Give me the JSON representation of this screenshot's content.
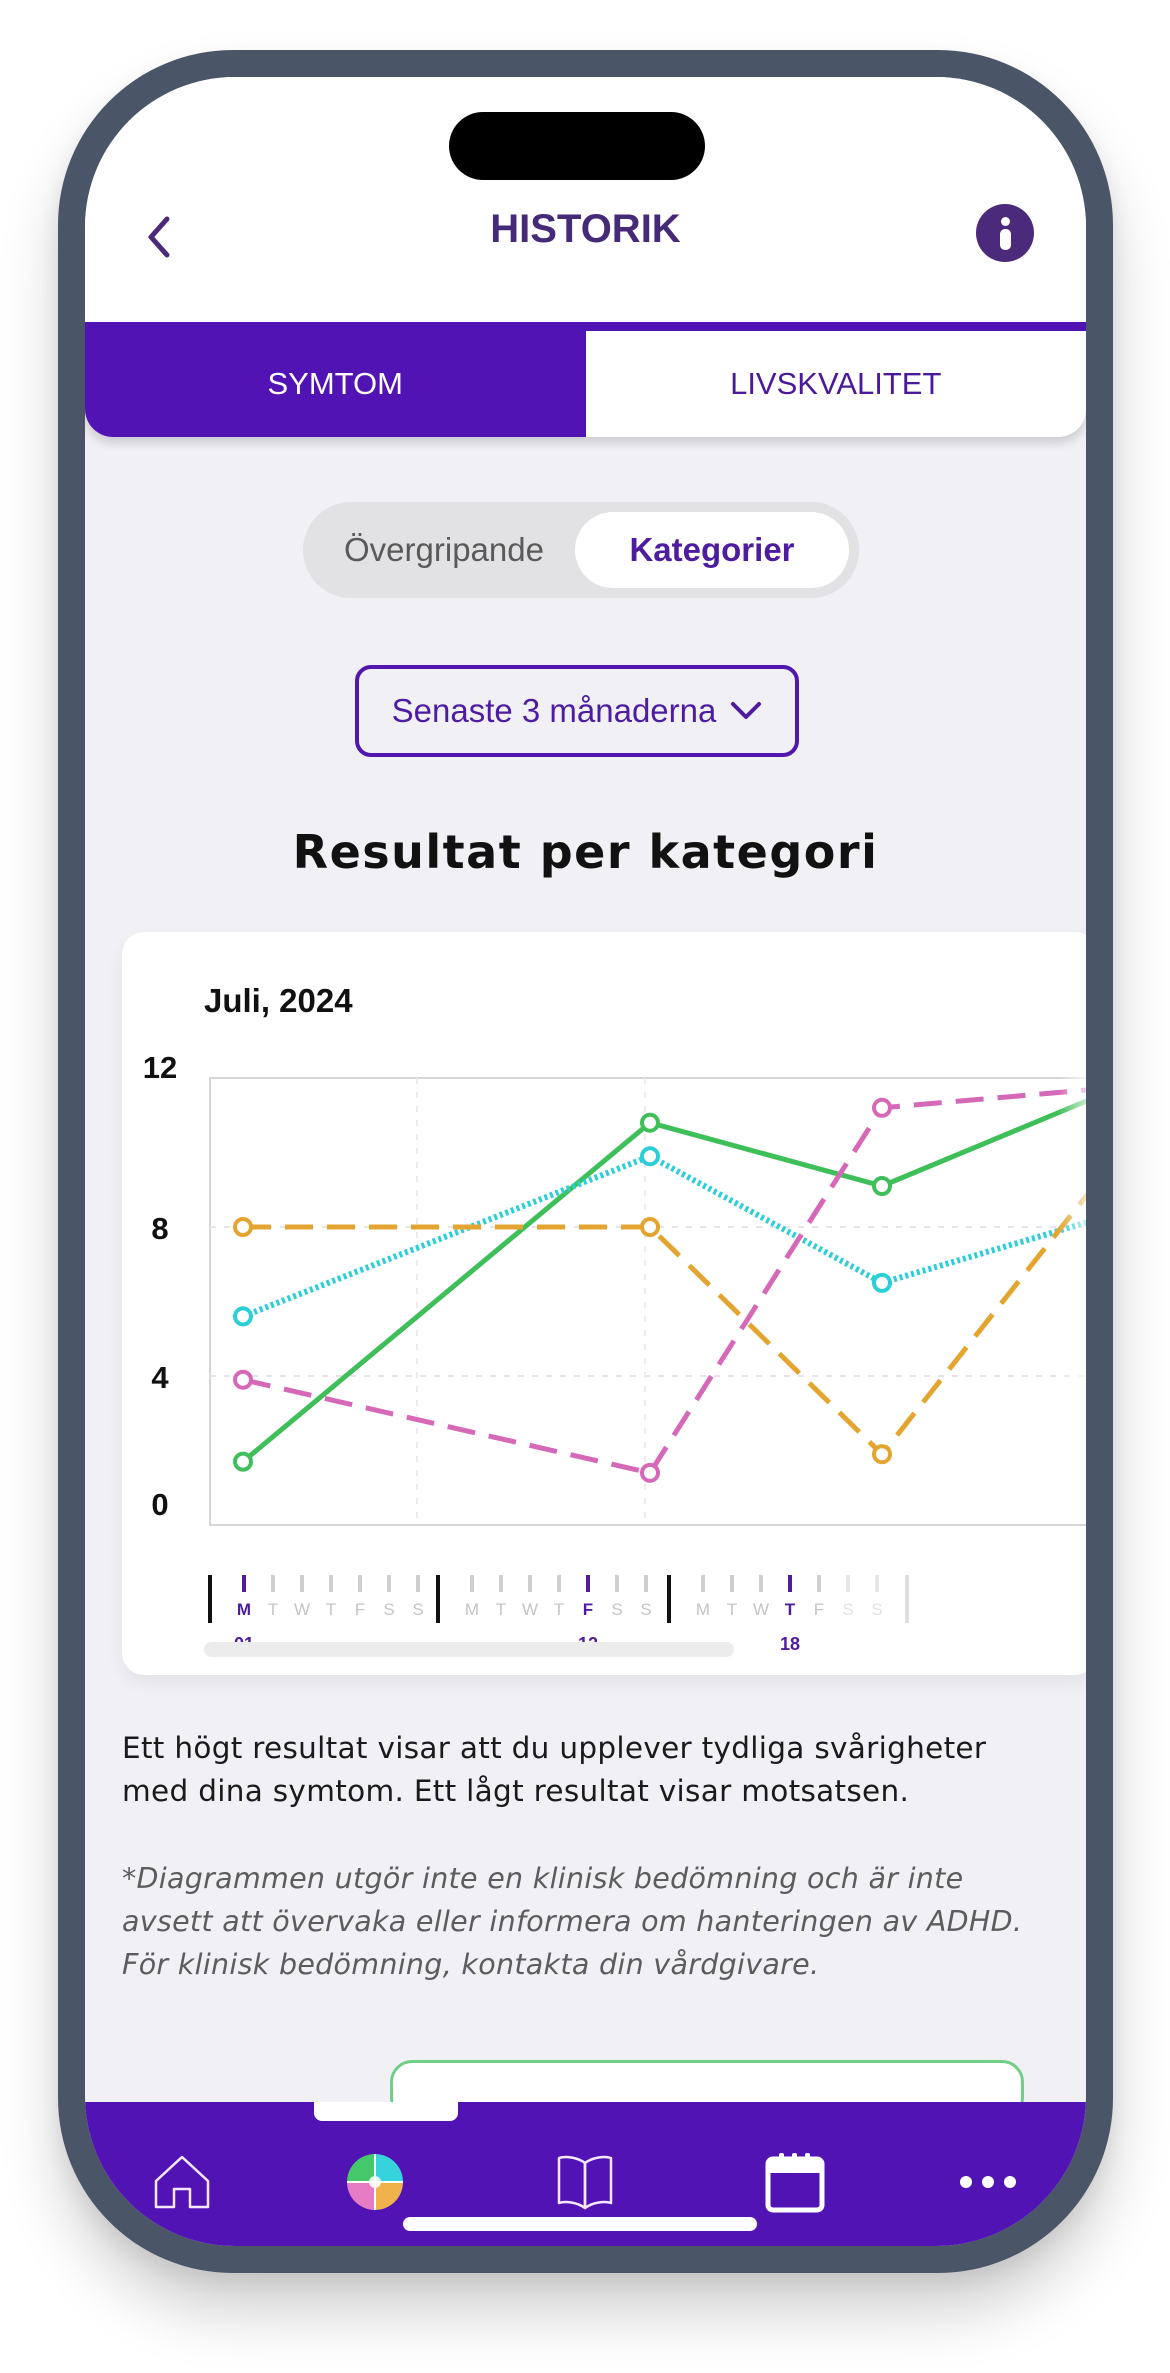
{
  "header": {
    "title": "HISTORIK",
    "back_icon": "chevron-left-icon",
    "info_icon": "info-icon"
  },
  "tabs": [
    {
      "label": "SYMTOM",
      "active": true
    },
    {
      "label": "LIVSKVALITET",
      "active": false
    }
  ],
  "segmented": {
    "options": [
      {
        "label": "Övergripande",
        "selected": false
      },
      {
        "label": "Kategorier",
        "selected": true
      }
    ]
  },
  "period_dropdown": {
    "selected": "Senaste 3 månaderna",
    "icon": "chevron-down-icon"
  },
  "section_title": "Resultat per kategori",
  "chart_card": {
    "month_label": "Juli, 2024"
  },
  "chart_data": {
    "type": "line",
    "title": "Juli, 2024",
    "xlabel": "",
    "ylabel": "",
    "ylim": [
      0,
      12
    ],
    "yticks": [
      0,
      4,
      8,
      12
    ],
    "x": [
      "01",
      "12",
      "18",
      "(next, faded)"
    ],
    "x_weekday_labels": [
      [
        "M",
        "T",
        "W",
        "T",
        "F",
        "S",
        "S"
      ],
      [
        "M",
        "T",
        "W",
        "T",
        "F",
        "S",
        "S"
      ],
      [
        "M",
        "T",
        "W",
        "T",
        "F",
        "S",
        "S"
      ]
    ],
    "highlighted_days": [
      {
        "week": 0,
        "weekday": "M",
        "date": "01"
      },
      {
        "week": 1,
        "weekday": "F",
        "date": "12"
      },
      {
        "week": 2,
        "weekday": "T",
        "date": "18"
      }
    ],
    "grid": true,
    "legend": "none",
    "series": [
      {
        "name": "green-solid",
        "color": "#3fbf5a",
        "style": "solid",
        "values": [
          1.7,
          10.8,
          9.1,
          11.5
        ]
      },
      {
        "name": "cyan-dotted",
        "color": "#2ccfd6",
        "style": "dotted",
        "values": [
          5.6,
          9.9,
          6.5,
          8.2
        ]
      },
      {
        "name": "orange-dashed",
        "color": "#e3a530",
        "style": "dashed",
        "values": [
          8,
          8,
          1.9,
          9.2
        ]
      },
      {
        "name": "pink-dashed",
        "color": "#d668b8",
        "style": "dashed",
        "values": [
          3.9,
          1.4,
          11.2,
          11.7
        ]
      }
    ]
  },
  "description": "Ett högt resultat visar att du upplever tydliga svårigheter med dina symtom. Ett lågt resultat visar motsatsen.",
  "disclaimer": "*Diagrammen utgör inte en klinisk bedömning och är inte avsett att övervaka eller informera om hanteringen av ADHD. För klinisk bedömning, kontakta din vårdgivare.",
  "bottom_nav": {
    "items": [
      {
        "name": "home",
        "icon": "home-icon"
      },
      {
        "name": "history",
        "icon": "color-wheel-icon",
        "active": true
      },
      {
        "name": "library",
        "icon": "book-icon"
      },
      {
        "name": "calendar",
        "icon": "calendar-icon"
      },
      {
        "name": "more",
        "icon": "more-dots-icon"
      }
    ]
  },
  "colors": {
    "brand_purple": "#5213b5",
    "title_purple": "#452a78",
    "frame": "#4a5668",
    "background": "#f0f0f5"
  }
}
